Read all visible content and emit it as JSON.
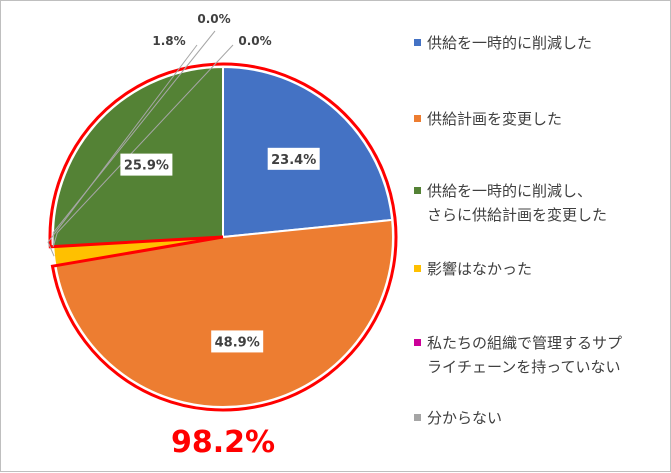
{
  "chart_data": {
    "type": "pie",
    "categories": [
      "供給を一時的に削減した",
      "供給計画を変更した",
      "影響はなかった",
      "私たちの組織で管理するサプ\nライチェーンを持っていない",
      "分からない",
      "供給を一時的に削減し、\nさらに供給計画を変更した"
    ],
    "values": [
      23.4,
      48.9,
      1.8,
      0.0,
      0.0,
      25.9
    ],
    "value_labels": [
      "23.4%",
      "48.9%",
      "1.8%",
      "0.0%",
      "0.0%",
      "25.9%"
    ],
    "colors": [
      "#4472c4",
      "#ed7d31",
      "#ffc000",
      "#cc0099",
      "#a5a5a5",
      "#548235"
    ],
    "start_angle_deg": 0,
    "direction": "clockwise",
    "highlight": {
      "label": "98.2%",
      "color": "#ff0000",
      "covers_categories": [
        "供給を一時的に削減した",
        "供給計画を変更した",
        "供給を一時的に削減し、\nさらに供給計画を変更した"
      ]
    },
    "legend": {
      "placement": "right",
      "items": [
        {
          "label": "供給を一時的に削減した",
          "color": "#4472c4"
        },
        {
          "label": "供給計画を変更した",
          "color": "#ed7d31"
        },
        {
          "label": "供給を一時的に削減し、\nさらに供給計画を変更した",
          "color": "#548235"
        },
        {
          "label": "影響はなかった",
          "color": "#ffc000"
        },
        {
          "label": "私たちの組織で管理するサプ\nライチェーンを持っていない",
          "color": "#cc0099"
        },
        {
          "label": "分からない",
          "color": "#a5a5a5"
        }
      ]
    }
  }
}
